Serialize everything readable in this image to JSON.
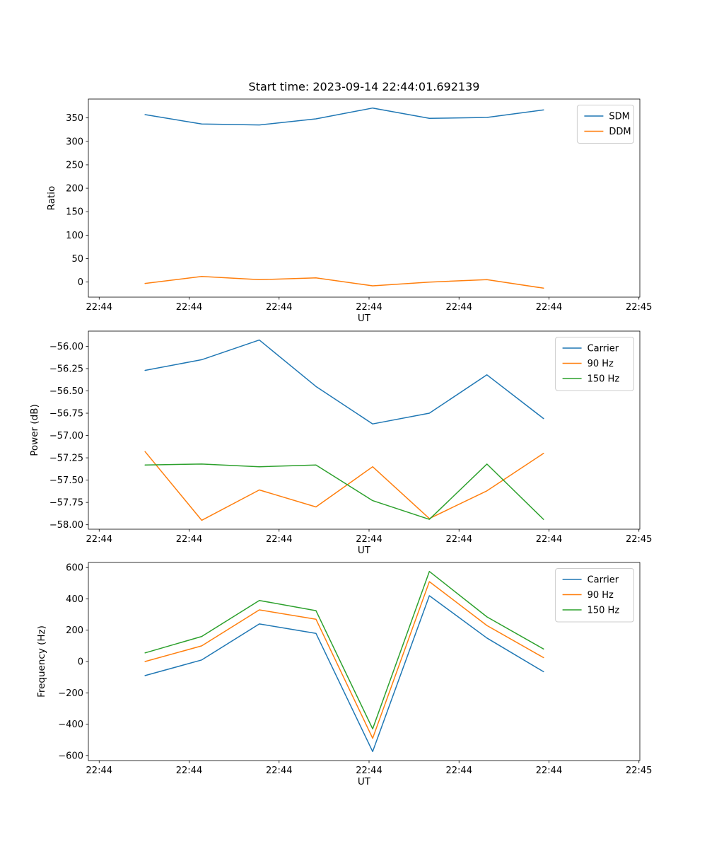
{
  "page": {
    "background": "#ffffff"
  },
  "chart_data": [
    {
      "type": "line",
      "title": "Start time: 2023-09-14 22:44:01.692139",
      "xlabel": "UT",
      "ylabel": "Ratio",
      "grid": false,
      "legend_position": "upper right",
      "xlim": [
        -1.2,
        60.1
      ],
      "ylim": [
        -32.2,
        390.2
      ],
      "xtick_values": [
        0,
        10,
        20,
        30,
        40,
        50,
        60
      ],
      "xtick_labels": [
        "22:44",
        "22:44",
        "22:44",
        "22:44",
        "22:44",
        "22:44",
        "22:45"
      ],
      "ytick_values": [
        0,
        50,
        100,
        150,
        200,
        250,
        300,
        350
      ],
      "ytick_labels": [
        "0",
        "50",
        "100",
        "150",
        "200",
        "250",
        "300",
        "350"
      ],
      "x": [
        5.1,
        11.4,
        17.8,
        24.1,
        30.4,
        36.7,
        43.1,
        49.4
      ],
      "series": [
        {
          "name": "SDM",
          "color": "#1f77b4",
          "values": [
            357,
            337,
            335,
            348,
            371,
            349,
            351,
            367
          ]
        },
        {
          "name": "DDM",
          "color": "#ff7f0e",
          "values": [
            -3,
            12,
            5,
            9,
            -8,
            0,
            5,
            -13
          ]
        }
      ]
    },
    {
      "type": "line",
      "title": "",
      "xlabel": "UT",
      "ylabel": "Power (dB)",
      "grid": false,
      "legend_position": "upper right",
      "xlim": [
        -1.2,
        60.1
      ],
      "ylim": [
        -58.05,
        -55.83
      ],
      "xtick_values": [
        0,
        10,
        20,
        30,
        40,
        50,
        60
      ],
      "xtick_labels": [
        "22:44",
        "22:44",
        "22:44",
        "22:44",
        "22:44",
        "22:44",
        "22:45"
      ],
      "ytick_values": [
        -58.0,
        -57.75,
        -57.5,
        -57.25,
        -57.0,
        -56.75,
        -56.5,
        -56.25,
        -56.0
      ],
      "ytick_labels": [
        "−58.00",
        "−57.75",
        "−57.50",
        "−57.25",
        "−57.00",
        "−56.75",
        "−56.50",
        "−56.25",
        "−56.00"
      ],
      "x": [
        5.1,
        11.4,
        17.8,
        24.1,
        30.4,
        36.7,
        43.1,
        49.4
      ],
      "series": [
        {
          "name": "Carrier",
          "color": "#1f77b4",
          "values": [
            -56.27,
            -56.15,
            -55.93,
            -56.45,
            -56.87,
            -56.75,
            -56.32,
            -56.81
          ]
        },
        {
          "name": "90 Hz",
          "color": "#ff7f0e",
          "values": [
            -57.18,
            -57.95,
            -57.61,
            -57.8,
            -57.35,
            -57.93,
            -57.62,
            -57.2
          ]
        },
        {
          "name": "150 Hz",
          "color": "#2ca02c",
          "values": [
            -57.33,
            -57.32,
            -57.35,
            -57.33,
            -57.73,
            -57.94,
            -57.32,
            -57.94
          ]
        }
      ]
    },
    {
      "type": "line",
      "title": "",
      "xlabel": "UT",
      "ylabel": "Frequency (Hz)",
      "grid": false,
      "legend_position": "upper right",
      "xlim": [
        -1.2,
        60.1
      ],
      "ylim": [
        -632.5,
        632.5
      ],
      "xtick_values": [
        0,
        10,
        20,
        30,
        40,
        50,
        60
      ],
      "xtick_labels": [
        "22:44",
        "22:44",
        "22:44",
        "22:44",
        "22:44",
        "22:44",
        "22:45"
      ],
      "ytick_values": [
        -600,
        -400,
        -200,
        0,
        200,
        400,
        600
      ],
      "ytick_labels": [
        "−600",
        "−400",
        "−200",
        "0",
        "200",
        "400",
        "600"
      ],
      "x": [
        5.1,
        11.4,
        17.8,
        24.1,
        30.4,
        36.7,
        43.1,
        49.4
      ],
      "series": [
        {
          "name": "Carrier",
          "color": "#1f77b4",
          "values": [
            -90,
            10,
            240,
            180,
            -575,
            420,
            150,
            -65
          ]
        },
        {
          "name": "90 Hz",
          "color": "#ff7f0e",
          "values": [
            0,
            100,
            330,
            270,
            -490,
            510,
            230,
            25
          ]
        },
        {
          "name": "150 Hz",
          "color": "#2ca02c",
          "values": [
            55,
            160,
            390,
            325,
            -430,
            575,
            285,
            80
          ]
        }
      ]
    }
  ]
}
